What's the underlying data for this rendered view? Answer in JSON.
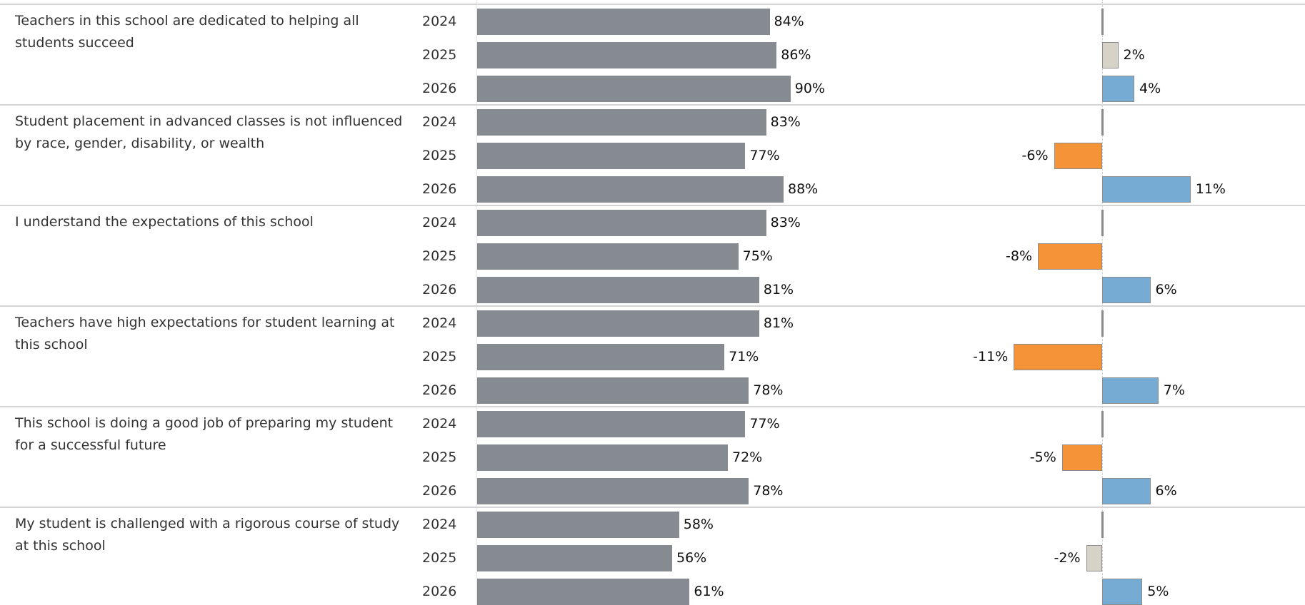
{
  "chart_data": {
    "type": "bar",
    "orientation": "horizontal",
    "title": "",
    "years": [
      "2024",
      "2025",
      "2026"
    ],
    "value_unit": "%",
    "change_unit": "%",
    "colors": {
      "value_bar": "#858b91",
      "change_increase": "#76abd4",
      "change_decrease": "#f49337",
      "change_small": "#d7d2c7",
      "change_baseline": "#8a8a8a",
      "separator": "#d4d4d4"
    },
    "questions": [
      {
        "label": "Teachers in this school are dedicated to helping all students succeed",
        "rows": [
          {
            "year": "2024",
            "value": 84,
            "value_label": "84%",
            "change": 0,
            "change_label": ""
          },
          {
            "year": "2025",
            "value": 86,
            "value_label": "86%",
            "change": 2,
            "change_label": "2%"
          },
          {
            "year": "2026",
            "value": 90,
            "value_label": "90%",
            "change": 4,
            "change_label": "4%"
          }
        ]
      },
      {
        "label": "Student placement in advanced classes is not influenced by race, gender, disability, or wealth",
        "rows": [
          {
            "year": "2024",
            "value": 83,
            "value_label": "83%",
            "change": 0,
            "change_label": ""
          },
          {
            "year": "2025",
            "value": 77,
            "value_label": "77%",
            "change": -6,
            "change_label": "-6%"
          },
          {
            "year": "2026",
            "value": 88,
            "value_label": "88%",
            "change": 11,
            "change_label": "11%"
          }
        ]
      },
      {
        "label": "I understand the expectations of this school",
        "rows": [
          {
            "year": "2024",
            "value": 83,
            "value_label": "83%",
            "change": 0,
            "change_label": ""
          },
          {
            "year": "2025",
            "value": 75,
            "value_label": "75%",
            "change": -8,
            "change_label": "-8%"
          },
          {
            "year": "2026",
            "value": 81,
            "value_label": "81%",
            "change": 6,
            "change_label": "6%"
          }
        ]
      },
      {
        "label": "Teachers have high expectations for student learning at this school",
        "rows": [
          {
            "year": "2024",
            "value": 81,
            "value_label": "81%",
            "change": 0,
            "change_label": ""
          },
          {
            "year": "2025",
            "value": 71,
            "value_label": "71%",
            "change": -11,
            "change_label": "-11%"
          },
          {
            "year": "2026",
            "value": 78,
            "value_label": "78%",
            "change": 7,
            "change_label": "7%"
          }
        ]
      },
      {
        "label": "This school is doing a good job of preparing my student for a successful future",
        "rows": [
          {
            "year": "2024",
            "value": 77,
            "value_label": "77%",
            "change": 0,
            "change_label": ""
          },
          {
            "year": "2025",
            "value": 72,
            "value_label": "72%",
            "change": -5,
            "change_label": "-5%"
          },
          {
            "year": "2026",
            "value": 78,
            "value_label": "78%",
            "change": 6,
            "change_label": "6%"
          }
        ]
      },
      {
        "label": "My student is challenged with a rigorous course of study at this school",
        "rows": [
          {
            "year": "2024",
            "value": 58,
            "value_label": "58%",
            "change": 0,
            "change_label": ""
          },
          {
            "year": "2025",
            "value": 56,
            "value_label": "56%",
            "change": -2,
            "change_label": "-2%"
          },
          {
            "year": "2026",
            "value": 61,
            "value_label": "61%",
            "change": 5,
            "change_label": "5%"
          }
        ]
      }
    ]
  }
}
